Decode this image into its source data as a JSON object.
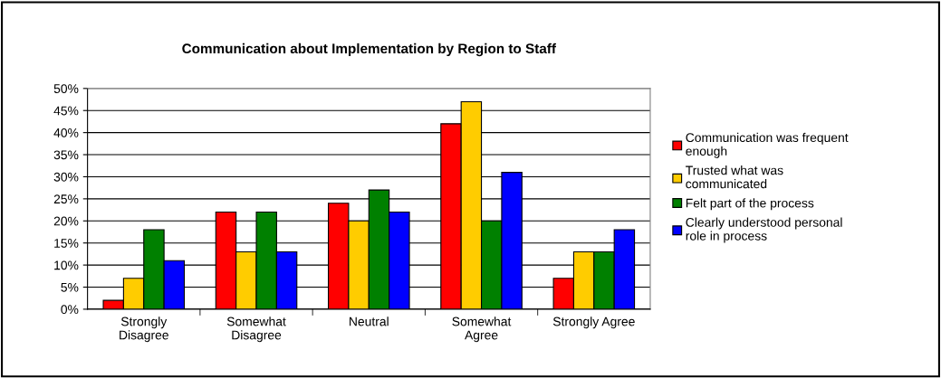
{
  "chart_data": {
    "type": "bar",
    "title": "Communication about Implementation by Region to Staff",
    "categories": [
      "Strongly\nDisagree",
      "Somewhat\nDisagree",
      "Neutral",
      "Somewhat\nAgree",
      "Strongly Agree"
    ],
    "series": [
      {
        "name": "Communication was frequent\nenough",
        "color": "#ff0000",
        "values": [
          2,
          22,
          24,
          42,
          7
        ]
      },
      {
        "name": "Trusted what was\ncommunicated",
        "color": "#ffcc00",
        "values": [
          7,
          13,
          20,
          47,
          13
        ]
      },
      {
        "name": "Felt part of the process",
        "color": "#008000",
        "values": [
          18,
          22,
          27,
          20,
          13
        ]
      },
      {
        "name": "Clearly understood personal\nrole in process",
        "color": "#0000ff",
        "values": [
          11,
          13,
          22,
          31,
          18
        ]
      }
    ],
    "ylim": [
      0,
      50
    ],
    "yticks": [
      {
        "value": 0,
        "label": "0%"
      },
      {
        "value": 5,
        "label": "5%"
      },
      {
        "value": 10,
        "label": "10%"
      },
      {
        "value": 15,
        "label": "15%"
      },
      {
        "value": 20,
        "label": "20%"
      },
      {
        "value": 25,
        "label": "25%"
      },
      {
        "value": 30,
        "label": "30%"
      },
      {
        "value": 35,
        "label": "35%"
      },
      {
        "value": 40,
        "label": "40%"
      },
      {
        "value": 45,
        "label": "45%"
      },
      {
        "value": 50,
        "label": "50%"
      }
    ],
    "grid": "y",
    "legend": "right"
  }
}
